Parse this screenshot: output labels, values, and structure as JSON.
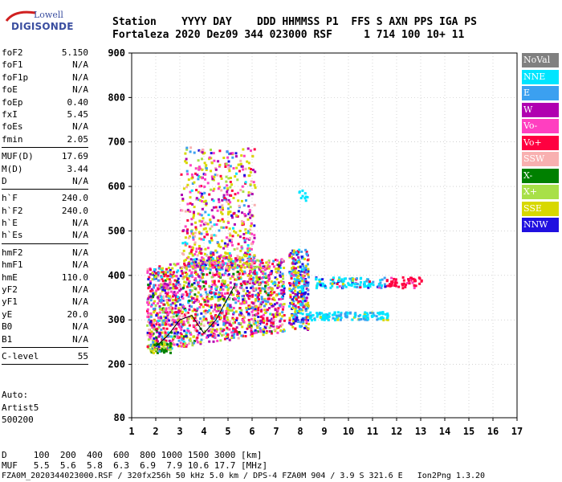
{
  "logo": {
    "line1": "Lowell",
    "line2": "DIGISONDE"
  },
  "header": {
    "labels": "Station    YYYY DAY    DDD HHMMSS P1  FFS S AXN PPS IGA PS",
    "values": "Fortaleza 2020 Dez09 344 023000 RSF     1 714 100 10+ 11"
  },
  "params": {
    "group1": [
      {
        "name": "foF2",
        "value": "5.150"
      },
      {
        "name": "foF1",
        "value": "N/A"
      },
      {
        "name": "foF1p",
        "value": "N/A"
      },
      {
        "name": "foE",
        "value": "N/A"
      },
      {
        "name": "foEp",
        "value": "0.40"
      },
      {
        "name": "fxI",
        "value": "5.45"
      },
      {
        "name": "foEs",
        "value": "N/A"
      },
      {
        "name": "fmin",
        "value": "2.05"
      }
    ],
    "group2": [
      {
        "name": "MUF(D)",
        "value": "17.69"
      },
      {
        "name": "M(D)",
        "value": "3.44"
      },
      {
        "name": "D",
        "value": "N/A"
      }
    ],
    "group3": [
      {
        "name": "h`F",
        "value": "240.0"
      },
      {
        "name": "h`F2",
        "value": "240.0"
      },
      {
        "name": "h`E",
        "value": "N/A"
      },
      {
        "name": "h`Es",
        "value": "N/A"
      }
    ],
    "group4": [
      {
        "name": "hmF2",
        "value": "N/A"
      },
      {
        "name": "hmF1",
        "value": "N/A"
      },
      {
        "name": "hmE",
        "value": "110.0"
      },
      {
        "name": "yF2",
        "value": "N/A"
      },
      {
        "name": "yF1",
        "value": "N/A"
      },
      {
        "name": "yE",
        "value": "20.0"
      },
      {
        "name": "B0",
        "value": "N/A"
      },
      {
        "name": "B1",
        "value": "N/A"
      }
    ],
    "clevel": {
      "name": "C-level",
      "value": "55"
    }
  },
  "auto": {
    "line1": "Auto:",
    "line2": "Artist5",
    "line3": "500200"
  },
  "legend": [
    {
      "label": "NoVal",
      "color": "#808080"
    },
    {
      "label": "NNE",
      "color": "#00e5ff"
    },
    {
      "label": "E",
      "color": "#3ba0f0"
    },
    {
      "label": "W",
      "color": "#b000b0"
    },
    {
      "label": "Vo-",
      "color": "#ff3fc0"
    },
    {
      "label": "Vo+",
      "color": "#ff0040"
    },
    {
      "label": "SSW",
      "color": "#f8b0b0"
    },
    {
      "label": "X-",
      "color": "#008000"
    },
    {
      "label": "X+",
      "color": "#a8e048"
    },
    {
      "label": "SSE",
      "color": "#d8d800"
    },
    {
      "label": "NNW",
      "color": "#2010e0"
    }
  ],
  "footer": {
    "line1": "D     100  200  400  600  800 1000 1500 3000 [km]",
    "line2": "MUF   5.5  5.6  5.8  6.3  6.9  7.9 10.6 17.7 [MHz]",
    "line3": "FZA0M_2020344023000.RSF / 320fx256h 50 kHz 5.0 km / DPS-4 FZA0M 904 / 3.9 S 321.6 E   Ion2Png 1.3.20"
  },
  "chart_data": {
    "type": "scatter",
    "title": "",
    "xlabel": "",
    "ylabel": "",
    "xlim": [
      1,
      17
    ],
    "ylim": [
      80,
      900
    ],
    "xticks": [
      1,
      2,
      3,
      4,
      5,
      6,
      7,
      8,
      9,
      10,
      11,
      12,
      13,
      14,
      15,
      16,
      17
    ],
    "yticks": [
      80,
      200,
      300,
      400,
      500,
      600,
      700,
      800,
      900
    ],
    "grid": "dotted",
    "legend_position": "right",
    "description_series": [
      {
        "name": "ionogram trace (approximate regions)",
        "regions": [
          {
            "f": [
              1.5,
              7.3
            ],
            "h": [
              230,
              420
            ]
          },
          {
            "f": [
              3.0,
              6.0
            ],
            "h": [
              420,
              690
            ]
          },
          {
            "f": [
              7.5,
              8.3
            ],
            "h": [
              280,
              460
            ]
          },
          {
            "f": [
              8.3,
              11.6
            ],
            "h": [
              300,
              320
            ]
          },
          {
            "f": [
              8.6,
              13.0
            ],
            "h": [
              372,
              400
            ]
          }
        ]
      }
    ],
    "trace_line": {
      "x": [
        2.0,
        2.5,
        3.0,
        3.5,
        4.0,
        4.5,
        5.0,
        5.3
      ],
      "y": [
        240,
        265,
        300,
        310,
        270,
        300,
        350,
        380
      ]
    }
  }
}
